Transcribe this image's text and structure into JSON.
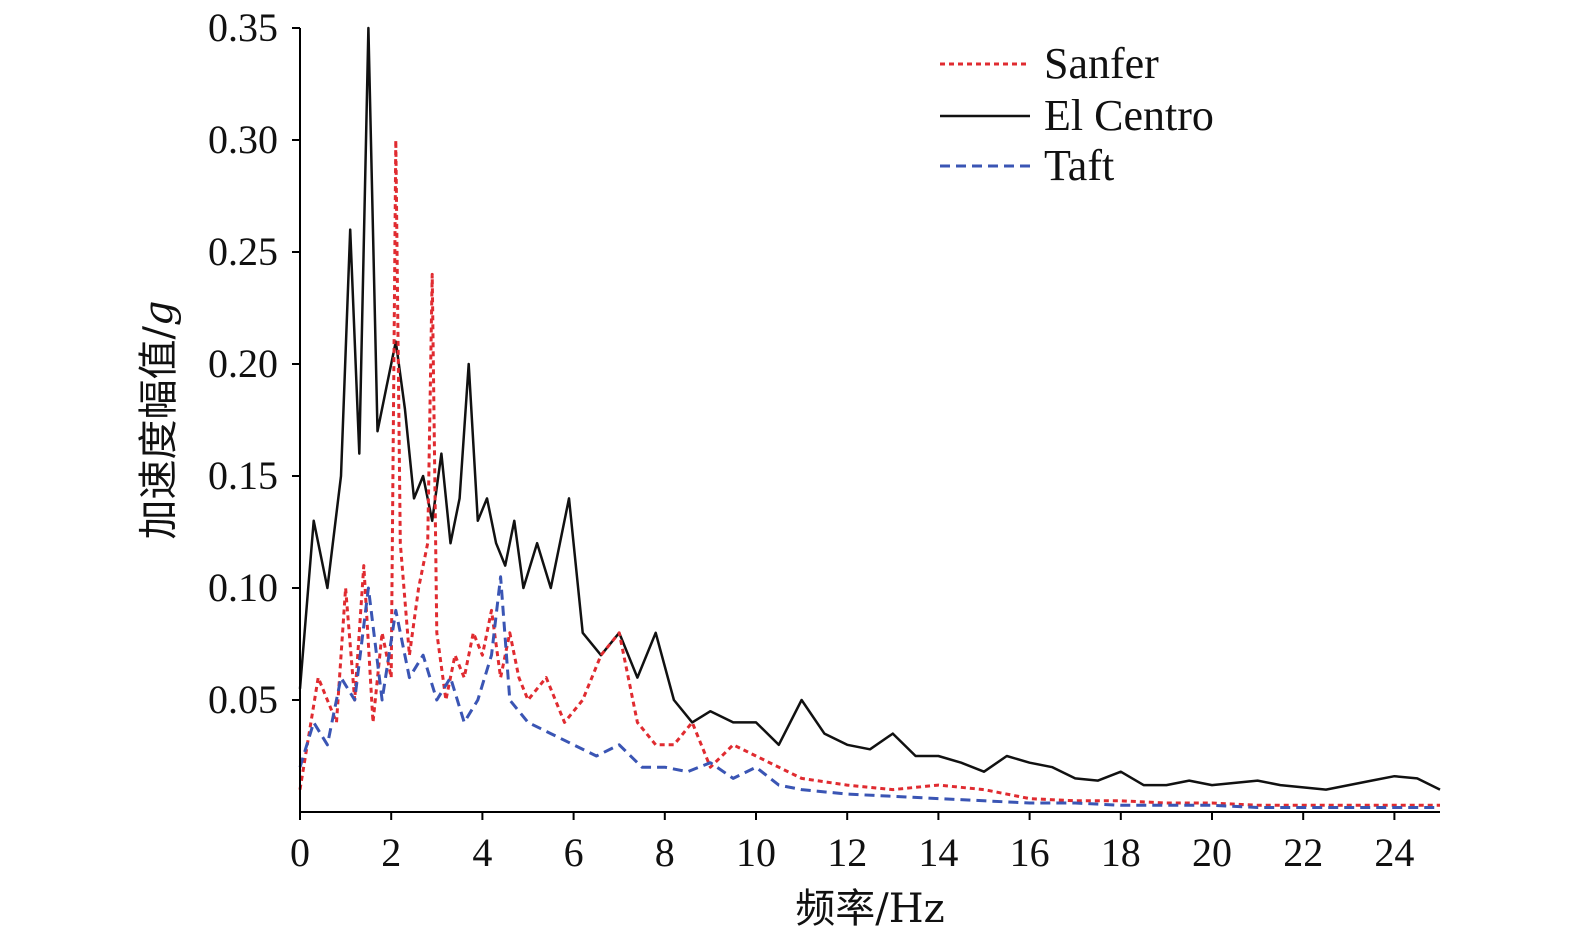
{
  "chart_data": {
    "type": "line",
    "xlabel": "频率/Hz",
    "ylabel_main": "加速度幅值/",
    "ylabel_unit": "g",
    "xlim": [
      0,
      25
    ],
    "ylim": [
      0,
      0.35
    ],
    "x_ticks": [
      0,
      2,
      4,
      6,
      8,
      10,
      12,
      14,
      16,
      18,
      20,
      22,
      24
    ],
    "x_tick_labels": [
      "0",
      "2",
      "4",
      "6",
      "8",
      "10",
      "12",
      "14",
      "16",
      "18",
      "20",
      "22",
      "24"
    ],
    "y_ticks": [
      0.05,
      0.1,
      0.15,
      0.2,
      0.25,
      0.3,
      0.35
    ],
    "y_tick_labels": [
      "0.05",
      "0.10",
      "0.15",
      "0.20",
      "0.25",
      "0.30",
      "0.35"
    ],
    "grid": false,
    "legend_position": "top-right",
    "series": [
      {
        "name": "Sanfer",
        "color": "#e02b30",
        "dash": "dotted",
        "x": [
          0.0,
          0.4,
          0.8,
          1.0,
          1.2,
          1.4,
          1.6,
          1.8,
          2.0,
          2.1,
          2.2,
          2.4,
          2.6,
          2.8,
          2.9,
          3.0,
          3.2,
          3.4,
          3.6,
          3.8,
          4.0,
          4.2,
          4.4,
          4.6,
          4.8,
          5.0,
          5.4,
          5.8,
          6.2,
          6.6,
          7.0,
          7.4,
          7.8,
          8.2,
          8.6,
          9.0,
          9.5,
          10.0,
          11.0,
          12.0,
          13.0,
          14.0,
          15.0,
          16.0,
          17.0,
          18.0,
          19.0,
          20.0,
          21.0,
          22.0,
          23.0,
          24.0,
          25.0
        ],
        "y": [
          0.01,
          0.06,
          0.04,
          0.1,
          0.05,
          0.11,
          0.04,
          0.08,
          0.06,
          0.3,
          0.12,
          0.07,
          0.1,
          0.12,
          0.24,
          0.08,
          0.05,
          0.07,
          0.06,
          0.08,
          0.07,
          0.09,
          0.06,
          0.08,
          0.06,
          0.05,
          0.06,
          0.04,
          0.05,
          0.07,
          0.08,
          0.04,
          0.03,
          0.03,
          0.04,
          0.02,
          0.03,
          0.025,
          0.015,
          0.012,
          0.01,
          0.012,
          0.01,
          0.006,
          0.005,
          0.005,
          0.004,
          0.004,
          0.003,
          0.003,
          0.003,
          0.003,
          0.003
        ]
      },
      {
        "name": "El Centro",
        "color": "#111111",
        "dash": "solid",
        "x": [
          0.0,
          0.3,
          0.6,
          0.9,
          1.1,
          1.3,
          1.5,
          1.7,
          1.9,
          2.1,
          2.3,
          2.5,
          2.7,
          2.9,
          3.1,
          3.3,
          3.5,
          3.7,
          3.9,
          4.1,
          4.3,
          4.5,
          4.7,
          4.9,
          5.2,
          5.5,
          5.9,
          6.2,
          6.6,
          7.0,
          7.4,
          7.8,
          8.2,
          8.6,
          9.0,
          9.5,
          10.0,
          10.5,
          11.0,
          11.5,
          12.0,
          12.5,
          13.0,
          13.5,
          14.0,
          14.5,
          15.0,
          15.5,
          16.0,
          16.5,
          17.0,
          17.5,
          18.0,
          18.5,
          19.0,
          19.5,
          20.0,
          20.5,
          21.0,
          21.5,
          22.0,
          22.5,
          23.0,
          23.5,
          24.0,
          24.5,
          25.0
        ],
        "y": [
          0.055,
          0.13,
          0.1,
          0.15,
          0.26,
          0.16,
          0.35,
          0.17,
          0.19,
          0.21,
          0.18,
          0.14,
          0.15,
          0.13,
          0.16,
          0.12,
          0.14,
          0.2,
          0.13,
          0.14,
          0.12,
          0.11,
          0.13,
          0.1,
          0.12,
          0.1,
          0.14,
          0.08,
          0.07,
          0.08,
          0.06,
          0.08,
          0.05,
          0.04,
          0.045,
          0.04,
          0.04,
          0.03,
          0.05,
          0.035,
          0.03,
          0.028,
          0.035,
          0.025,
          0.025,
          0.022,
          0.018,
          0.025,
          0.022,
          0.02,
          0.015,
          0.014,
          0.018,
          0.012,
          0.012,
          0.014,
          0.012,
          0.013,
          0.014,
          0.012,
          0.011,
          0.01,
          0.012,
          0.014,
          0.016,
          0.015,
          0.01
        ]
      },
      {
        "name": "Taft",
        "color": "#3a55b4",
        "dash": "dashed",
        "x": [
          0.0,
          0.3,
          0.6,
          0.9,
          1.2,
          1.5,
          1.8,
          2.1,
          2.4,
          2.7,
          3.0,
          3.3,
          3.6,
          3.9,
          4.2,
          4.4,
          4.6,
          5.0,
          5.5,
          6.0,
          6.5,
          7.0,
          7.5,
          8.0,
          8.5,
          9.0,
          9.5,
          10.0,
          10.5,
          11.0,
          12.0,
          13.0,
          14.0,
          15.0,
          16.0,
          17.0,
          18.0,
          19.0,
          20.0,
          21.0,
          22.0,
          23.0,
          24.0,
          25.0
        ],
        "y": [
          0.02,
          0.04,
          0.03,
          0.06,
          0.05,
          0.1,
          0.05,
          0.09,
          0.06,
          0.07,
          0.05,
          0.06,
          0.04,
          0.05,
          0.07,
          0.105,
          0.05,
          0.04,
          0.035,
          0.03,
          0.025,
          0.03,
          0.02,
          0.02,
          0.018,
          0.022,
          0.015,
          0.02,
          0.012,
          0.01,
          0.008,
          0.007,
          0.006,
          0.005,
          0.004,
          0.004,
          0.003,
          0.003,
          0.003,
          0.002,
          0.002,
          0.002,
          0.002,
          0.002
        ]
      }
    ]
  }
}
